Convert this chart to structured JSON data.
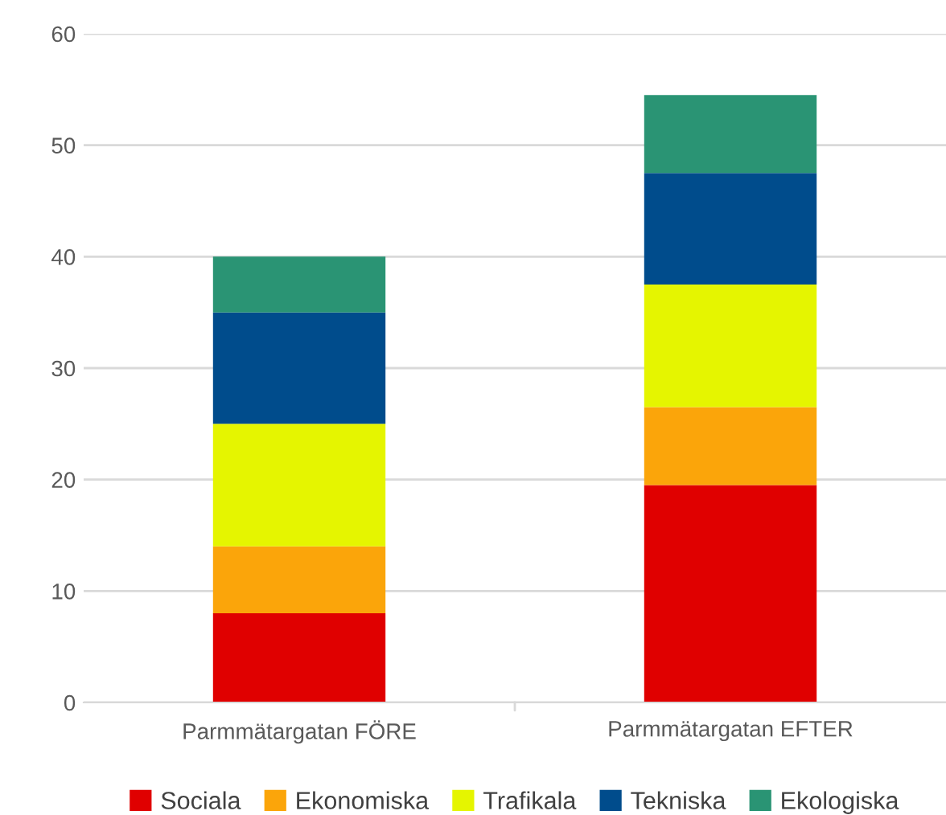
{
  "chart_data": {
    "type": "bar",
    "stacked": true,
    "categories": [
      "Parmmätargatan FÖRE",
      "Parmmätargatan EFTER"
    ],
    "series": [
      {
        "name": "Sociala",
        "color": "#e00000",
        "values": [
          8,
          19.5
        ]
      },
      {
        "name": "Ekonomiska",
        "color": "#fba50a",
        "values": [
          6,
          7
        ]
      },
      {
        "name": "Trafikala",
        "color": "#e5f500",
        "values": [
          11,
          11
        ]
      },
      {
        "name": "Tekniska",
        "color": "#004c8c",
        "values": [
          10,
          10
        ]
      },
      {
        "name": "Ekologiska",
        "color": "#2a9474",
        "values": [
          5,
          7
        ]
      }
    ],
    "ylim": [
      0,
      60
    ],
    "yticks": [
      0,
      10,
      20,
      30,
      40,
      50,
      60
    ],
    "grid": "y",
    "legend": "bottom"
  }
}
